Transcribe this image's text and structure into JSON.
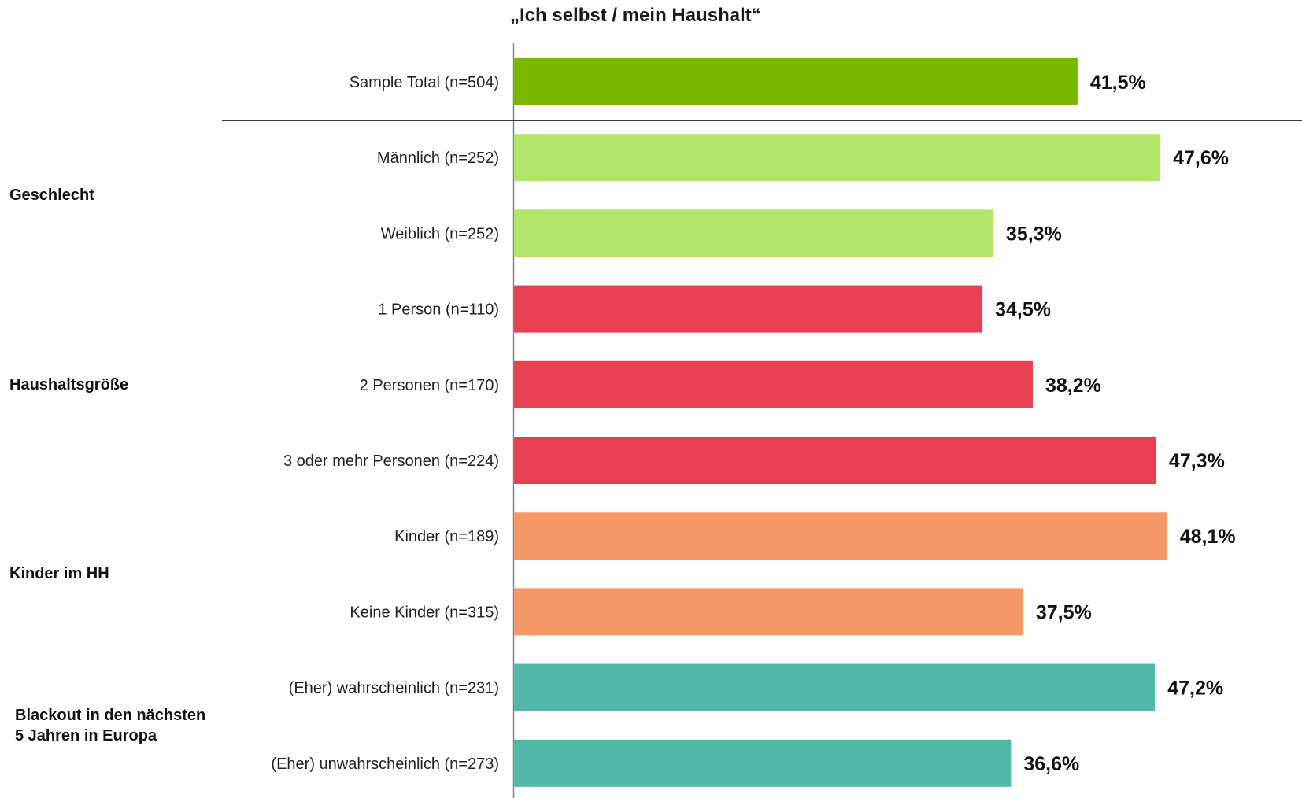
{
  "chart_data": {
    "type": "bar",
    "orientation": "horizontal",
    "title": "„Ich selbst / mein Haushalt“",
    "xlim": [
      0,
      50
    ],
    "grid": false,
    "legend": "none",
    "categories": [
      "Sample Total (n=504)",
      "Männlich (n=252)",
      "Weiblich (n=252)",
      "1 Person (n=110)",
      "2 Personen (n=170)",
      "3 oder mehr Personen (n=224)",
      "Kinder (n=189)",
      "Keine Kinder (n=315)",
      "(Eher) wahrscheinlich (n=231)",
      "(Eher) unwahrscheinlich (n=273)"
    ],
    "values": [
      41.5,
      47.6,
      35.3,
      34.5,
      38.2,
      47.3,
      48.1,
      37.5,
      47.2,
      36.6
    ],
    "value_labels": [
      "41,5%",
      "47,6%",
      "35,3%",
      "34,5%",
      "38,2%",
      "47,3%",
      "48,1%",
      "37,5%",
      "47,2%",
      "36,6%"
    ],
    "bar_colors": [
      "#7ab800",
      "#b2e66a",
      "#b2e66a",
      "#e64052",
      "#e64052",
      "#e64052",
      "#f59868",
      "#f59868",
      "#51b8a8",
      "#51b8a8"
    ],
    "groups": [
      {
        "label": "Geschlecht",
        "rows": [
          1,
          2
        ]
      },
      {
        "label": "Haushaltsgröße",
        "rows": [
          3,
          4,
          5
        ]
      },
      {
        "label": "Kinder im HH",
        "rows": [
          6,
          7
        ]
      },
      {
        "label": "Blackout in den nächsten\n5 Jahren in Europa",
        "rows": [
          8,
          9
        ]
      }
    ]
  }
}
